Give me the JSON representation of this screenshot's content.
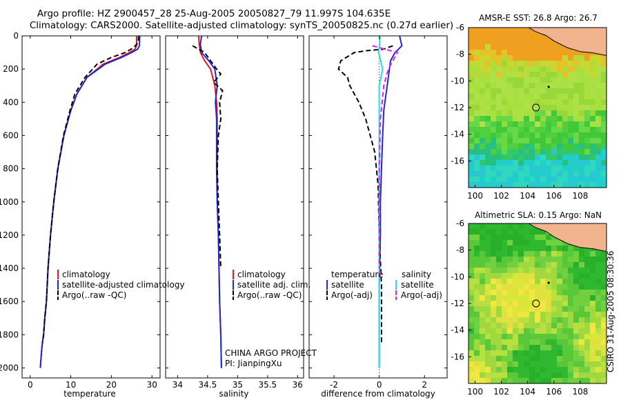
{
  "header": {
    "line1": "Argo profile: HZ 2900457_28 25-Aug-2005 20050827_79 11.997S 104.635E",
    "line2": "Climatology: CARS2000. Satellite-adjusted climatology: synTS_20050825.nc (0.27d earlier)"
  },
  "side_label": "CSIRO 31-Aug-2005 08:30:36",
  "colors": {
    "red": "#e8141e",
    "blue": "#1e28d2",
    "black": "#000000",
    "cyan": "#22dede",
    "magenta": "#e21ee2",
    "land": "#f2b48c"
  },
  "chart_data": [
    {
      "type": "line",
      "id": "temp",
      "xlabel": "temperature",
      "ylabel": "",
      "xlim": [
        -2,
        32
      ],
      "ylim": [
        2060,
        0
      ],
      "xticks": [
        0,
        10,
        20,
        30
      ],
      "yticks": [
        0,
        200,
        400,
        600,
        800,
        1000,
        1200,
        1400,
        1600,
        1800,
        2000
      ],
      "series": [
        {
          "name": "climatology",
          "color": "red",
          "dash": false,
          "x": [
            26.2,
            26.2,
            25.8,
            24.5,
            22.0,
            18.0,
            14.0,
            11.5,
            10.0,
            8.3,
            6.8,
            5.8,
            5.0,
            4.4,
            4.0,
            3.6,
            3.3,
            3.0,
            2.8,
            2.6,
            2.5
          ],
          "y": [
            0,
            60,
            80,
            100,
            130,
            170,
            250,
            350,
            450,
            600,
            800,
            1000,
            1200,
            1400,
            1600,
            1700,
            1800,
            1850,
            1900,
            1960,
            2000
          ]
        },
        {
          "name": "satellite-adjusted climatology",
          "color": "blue",
          "dash": false,
          "x": [
            27.0,
            26.9,
            26.5,
            25.0,
            22.5,
            18.5,
            14.0,
            11.5,
            10.0,
            8.3,
            6.8,
            5.8,
            5.0,
            4.4,
            4.0,
            3.6,
            3.3,
            3.0,
            2.8,
            2.6,
            2.5
          ],
          "y": [
            0,
            60,
            80,
            100,
            130,
            170,
            250,
            350,
            450,
            600,
            800,
            1000,
            1200,
            1400,
            1600,
            1700,
            1800,
            1850,
            1900,
            1960,
            2000
          ]
        },
        {
          "name": "Argo(..raw -QC)",
          "color": "black",
          "dash": true,
          "x": [
            26.7,
            26.6,
            25.5,
            23.5,
            20.0,
            16.5,
            13.5,
            11.0,
            9.8,
            8.2,
            6.8,
            5.8,
            5.0,
            4.4,
            4.0,
            3.6,
            3.3,
            3.0
          ],
          "y": [
            0,
            40,
            70,
            100,
            130,
            170,
            250,
            350,
            450,
            600,
            800,
            1000,
            1200,
            1400,
            1600,
            1700,
            1800,
            1850
          ]
        }
      ],
      "legend": [
        "climatology",
        "satellite-adjusted climatology",
        "Argo(..raw -QC)"
      ]
    },
    {
      "type": "line",
      "id": "sal",
      "xlabel": "salinity",
      "xlim": [
        33.8,
        36.1
      ],
      "ylim": [
        2060,
        0
      ],
      "xticks": [
        34,
        34.5,
        35,
        35.5,
        36
      ],
      "series": [
        {
          "name": "climatology",
          "color": "red",
          "dash": false,
          "x": [
            34.35,
            34.36,
            34.38,
            34.45,
            34.55,
            34.62,
            34.65,
            34.66,
            34.66,
            34.66,
            34.66,
            34.68,
            34.69,
            34.7,
            34.72,
            34.73
          ],
          "y": [
            0,
            50,
            100,
            150,
            200,
            300,
            400,
            500,
            600,
            800,
            1000,
            1200,
            1400,
            1600,
            1800,
            2000
          ]
        },
        {
          "name": "satellite adj. clim.",
          "color": "blue",
          "dash": false,
          "x": [
            34.4,
            34.38,
            34.4,
            34.52,
            34.62,
            34.66,
            34.63,
            34.65,
            34.65,
            34.65,
            34.66,
            34.68,
            34.69,
            34.7,
            34.72,
            34.73
          ],
          "y": [
            0,
            50,
            100,
            150,
            200,
            300,
            400,
            500,
            600,
            800,
            1000,
            1200,
            1400,
            1600,
            1800,
            2000
          ]
        },
        {
          "name": "Argo(..raw -QC)",
          "color": "black",
          "dash": true,
          "x": [
            34.25,
            34.35,
            34.45,
            34.55,
            34.65,
            34.72,
            34.6,
            34.75,
            34.7,
            34.72,
            34.68,
            34.66,
            34.68,
            34.7,
            34.72
          ],
          "y": [
            60,
            80,
            100,
            150,
            200,
            230,
            280,
            330,
            400,
            500,
            600,
            800,
            1000,
            1200,
            1400
          ]
        }
      ],
      "legend": [
        "climatology",
        "satellite adj. clim.",
        "Argo(..raw -QC)"
      ],
      "annotation": [
        "CHINA ARGO PROJECT",
        "PI: JianpingXu"
      ]
    },
    {
      "type": "line",
      "id": "diff",
      "xlabel": "difference from climatology",
      "xlim": [
        -3.1,
        3.0
      ],
      "ylim": [
        2060,
        0
      ],
      "xticks": [
        -2,
        0,
        2
      ],
      "series": [
        {
          "name": "temperature satellite",
          "color": "blue",
          "dash": false,
          "x": [
            0.9,
            1.0,
            0.7,
            0.5,
            0.4,
            0.3,
            0.2,
            0.15,
            0.1,
            0.05,
            0.05,
            0.0,
            0.0,
            0.0
          ],
          "y": [
            0,
            60,
            100,
            150,
            250,
            350,
            450,
            600,
            800,
            1000,
            1200,
            1500,
            1800,
            2000
          ]
        },
        {
          "name": "temperature Argo(-adj)",
          "color": "black",
          "dash": true,
          "x": [
            0.6,
            0.2,
            -0.6,
            -1.1,
            -1.7,
            -1.8,
            -1.4,
            -1.3,
            -0.9,
            -0.6,
            -0.2,
            -0.05,
            0.0,
            0.1,
            0.1
          ],
          "y": [
            60,
            80,
            90,
            100,
            150,
            200,
            250,
            300,
            400,
            500,
            700,
            900,
            1200,
            1500,
            1850
          ]
        },
        {
          "name": "salinity satellite",
          "color": "cyan",
          "dash": false,
          "x": [
            0.05,
            -0.03,
            0.15,
            0.0,
            0.0,
            0.0,
            0.0,
            0.0,
            0.0
          ],
          "y": [
            0,
            100,
            200,
            300,
            500,
            800,
            1200,
            1600,
            2000
          ]
        },
        {
          "name": "salinity Argo(-adj)",
          "color": "magenta",
          "dash": true,
          "x": [
            -0.3,
            0.8,
            0.4,
            0.2,
            0.05,
            0.0,
            0.0,
            0.0
          ],
          "y": [
            60,
            100,
            200,
            300,
            500,
            800,
            1200,
            1400
          ]
        }
      ],
      "legend_headers": [
        "temperature",
        "salinity"
      ],
      "legend": [
        "satellite",
        "Argo(-adj)",
        "satellite",
        "Argo(-adj)"
      ]
    },
    {
      "type": "heatmap",
      "id": "sst",
      "title": "AMSR-E SST: 26.8 Argo: 26.7",
      "xlim": [
        99.5,
        110
      ],
      "ylim": [
        -18,
        -6
      ],
      "xticks": [
        100,
        102,
        104,
        106,
        108
      ],
      "yticks": [
        -6,
        -8,
        -10,
        -12,
        -14,
        -16
      ],
      "argo_position": [
        104.635,
        -11.997
      ]
    },
    {
      "type": "heatmap",
      "id": "sla",
      "title": "Altimetric SLA: 0.15 Argo: NaN",
      "xlim": [
        99.5,
        110
      ],
      "ylim": [
        -18,
        -6
      ],
      "xticks": [
        100,
        102,
        104,
        106,
        108
      ],
      "yticks": [
        -6,
        -8,
        -10,
        -12,
        -14,
        -16
      ],
      "argo_position": [
        104.635,
        -11.997
      ]
    }
  ]
}
